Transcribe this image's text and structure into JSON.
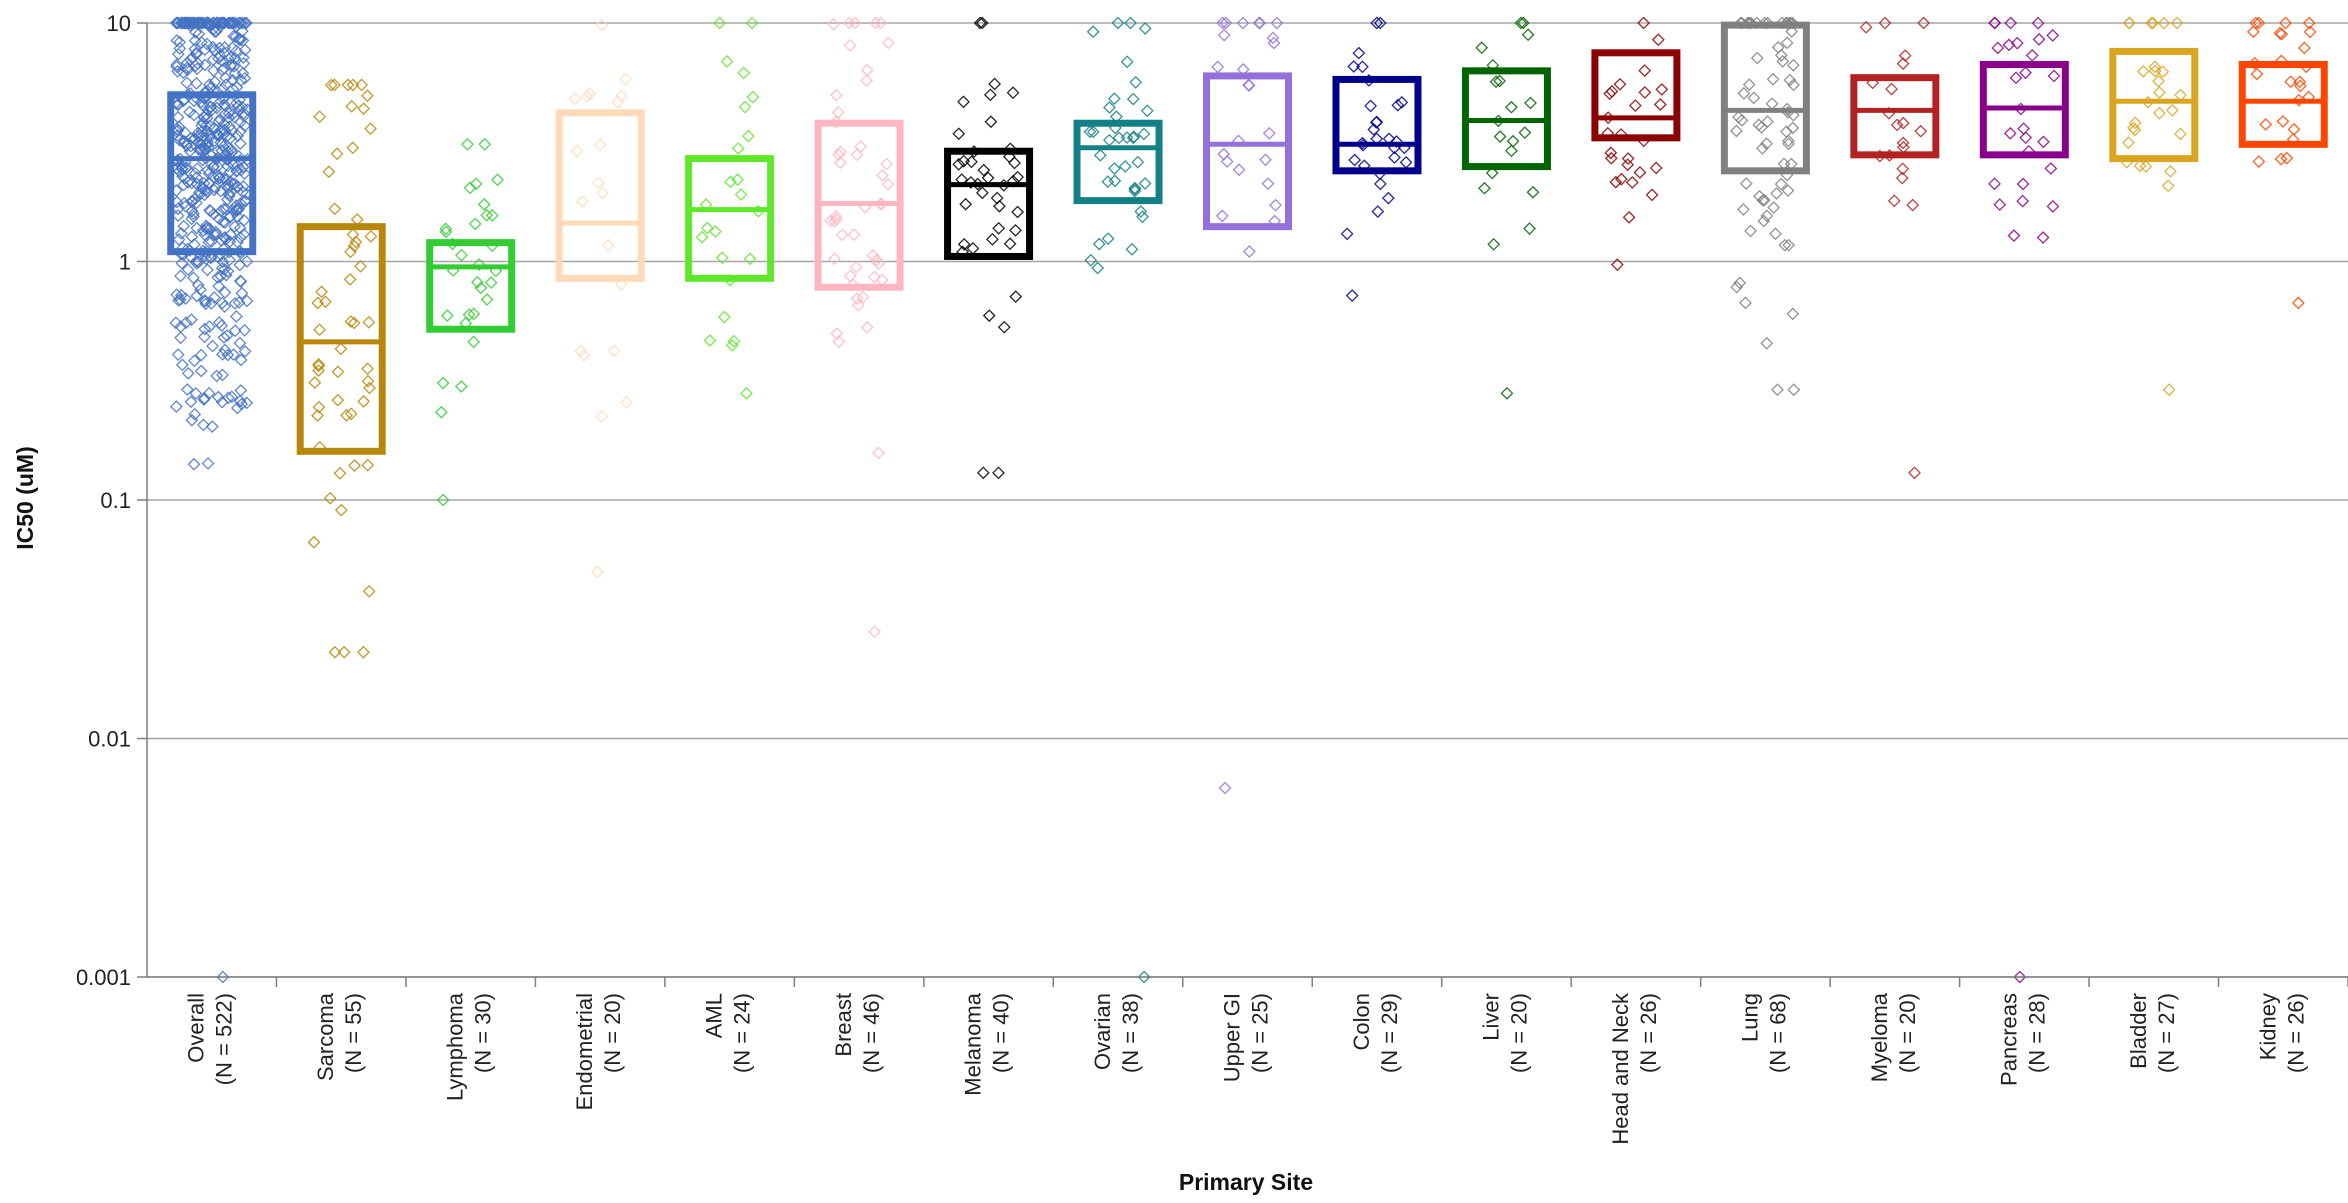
{
  "chart_data": {
    "type": "box-strip",
    "xlabel": "Primary Site",
    "ylabel": "IC50 (uM)",
    "y_scale": "log",
    "ylim": [
      0.001,
      10
    ],
    "y_ticks": [
      "10",
      "1",
      "0.1",
      "0.01",
      "0.001"
    ],
    "grid": "horizontal",
    "categories": [
      {
        "name": "Overall",
        "n_label": "(N = 522)",
        "n": 522,
        "color": "#4472C4",
        "q1": 1.1,
        "median": 2.7,
        "q3": 5.0,
        "pmin": 0.001,
        "pmax": 10
      },
      {
        "name": "Sarcoma",
        "n_label": "(N = 55)",
        "n": 55,
        "color": "#B8860B",
        "q1": 0.16,
        "median": 0.46,
        "q3": 1.4,
        "pmin": 0.023,
        "pmax": 5.5
      },
      {
        "name": "Lymphoma",
        "n_label": "(N = 30)",
        "n": 30,
        "color": "#33CC33",
        "q1": 0.52,
        "median": 0.95,
        "q3": 1.2,
        "pmin": 0.1,
        "pmax": 3.1
      },
      {
        "name": "Endometrial",
        "n_label": "(N = 20)",
        "n": 20,
        "color": "#FFDAB9",
        "q1": 0.85,
        "median": 1.45,
        "q3": 4.2,
        "pmin": 0.05,
        "pmax": 9.8
      },
      {
        "name": "AML",
        "n_label": "(N = 24)",
        "n": 24,
        "color": "#5FE82A",
        "q1": 0.85,
        "median": 1.65,
        "q3": 2.7,
        "pmin": 0.28,
        "pmax": 10
      },
      {
        "name": "Breast",
        "n_label": "(N = 46)",
        "n": 46,
        "color": "#FFB6C1",
        "q1": 0.78,
        "median": 1.75,
        "q3": 3.8,
        "pmin": 0.028,
        "pmax": 10
      },
      {
        "name": "Melanoma",
        "n_label": "(N = 40)",
        "n": 40,
        "color": "#000000",
        "q1": 1.05,
        "median": 2.1,
        "q3": 2.9,
        "pmin": 0.13,
        "pmax": 10
      },
      {
        "name": "Ovarian",
        "n_label": "(N = 38)",
        "n": 38,
        "color": "#138085",
        "q1": 1.8,
        "median": 3.0,
        "q3": 3.8,
        "pmin": 0.001,
        "pmax": 10
      },
      {
        "name": "Upper GI",
        "n_label": "(N = 25)",
        "n": 25,
        "color": "#9370DB",
        "q1": 1.4,
        "median": 3.1,
        "q3": 6.0,
        "pmin": 0.0062,
        "pmax": 10
      },
      {
        "name": "Colon",
        "n_label": "(N = 29)",
        "n": 29,
        "color": "#00008B",
        "q1": 2.4,
        "median": 3.1,
        "q3": 5.8,
        "pmin": 0.72,
        "pmax": 10
      },
      {
        "name": "Liver",
        "n_label": "(N = 20)",
        "n": 20,
        "color": "#006400",
        "q1": 2.5,
        "median": 3.9,
        "q3": 6.3,
        "pmin": 0.28,
        "pmax": 10
      },
      {
        "name": "Head and Neck",
        "n_label": "(N = 26)",
        "n": 26,
        "color": "#8B0000",
        "q1": 3.3,
        "median": 4.0,
        "q3": 7.5,
        "pmin": 0.97,
        "pmax": 10
      },
      {
        "name": "Lung",
        "n_label": "(N = 68)",
        "n": 68,
        "color": "#808080",
        "q1": 2.4,
        "median": 4.3,
        "q3": 9.8,
        "pmin": 0.29,
        "pmax": 10
      },
      {
        "name": "Myeloma",
        "n_label": "(N = 20)",
        "n": 20,
        "color": "#B22222",
        "q1": 2.8,
        "median": 4.3,
        "q3": 5.9,
        "pmin": 0.13,
        "pmax": 10
      },
      {
        "name": "Pancreas",
        "n_label": "(N = 28)",
        "n": 28,
        "color": "#8B008B",
        "q1": 2.8,
        "median": 4.4,
        "q3": 6.7,
        "pmin": 0.001,
        "pmax": 10
      },
      {
        "name": "Bladder",
        "n_label": "(N = 27)",
        "n": 27,
        "color": "#DAA520",
        "q1": 2.7,
        "median": 4.7,
        "q3": 7.6,
        "pmin": 0.29,
        "pmax": 10
      },
      {
        "name": "Kidney",
        "n_label": "(N = 26)",
        "n": 26,
        "color": "#FF4500",
        "q1": 3.1,
        "median": 4.7,
        "q3": 6.7,
        "pmin": 0.67,
        "pmax": 10
      }
    ]
  }
}
